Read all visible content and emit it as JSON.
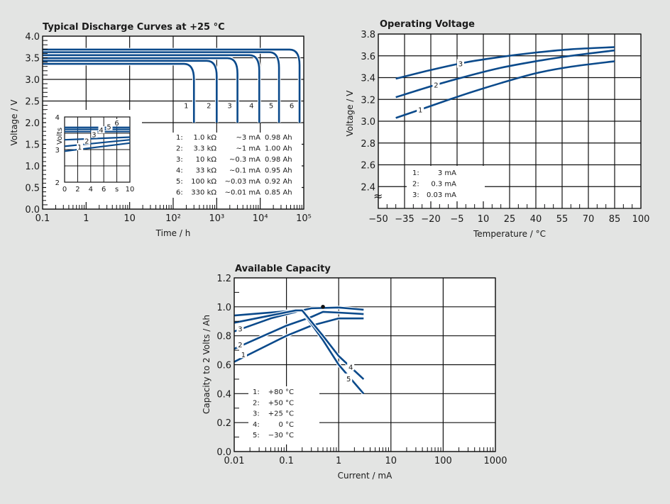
{
  "colors": {
    "background": "#e3e4e3",
    "plot_bg": "#ffffff",
    "curve": "#0b4a8b",
    "grid": "#111111"
  },
  "chart_data": [
    {
      "id": "discharge",
      "type": "line",
      "title": "Typical Discharge Curves at +25 °C",
      "xlabel": "Time / h",
      "ylabel": "Voltage / V",
      "xscale": "log",
      "xlim": [
        0.1,
        100000
      ],
      "ylim": [
        0.0,
        4.0
      ],
      "grid": true,
      "x_ticks": [
        0.1,
        1,
        10,
        100,
        1000,
        10000,
        100000
      ],
      "x_tick_labels": [
        "0.1",
        "1",
        "10",
        "10²",
        "10³",
        "10⁴",
        "10⁵"
      ],
      "y_ticks": [
        0.0,
        0.5,
        1.0,
        1.5,
        2.0,
        2.5,
        3.0,
        3.5,
        4.0
      ],
      "y_tick_labels": [
        "0.0",
        "0.5",
        "1.0",
        "1.5",
        "2.0",
        "2.5",
        "3.0",
        "3.5",
        "4.0"
      ],
      "series": [
        {
          "name": "1",
          "plateau_v": 3.36,
          "end_h": 300,
          "cutoff_v": 2.0
        },
        {
          "name": "2",
          "plateau_v": 3.43,
          "end_h": 1000,
          "cutoff_v": 2.0
        },
        {
          "name": "3",
          "plateau_v": 3.49,
          "end_h": 3000,
          "cutoff_v": 2.0
        },
        {
          "name": "4",
          "plateau_v": 3.56,
          "end_h": 9500,
          "cutoff_v": 2.0
        },
        {
          "name": "5",
          "plateau_v": 3.63,
          "end_h": 27000,
          "cutoff_v": 2.0
        },
        {
          "name": "6",
          "plateau_v": 3.69,
          "end_h": 80000,
          "cutoff_v": 2.0
        }
      ],
      "legend": {
        "placement": "bottom-right",
        "rows": [
          {
            "num": "1:",
            "load": "1.0 kΩ",
            "current": "~3 mA",
            "capacity": "0.98 Ah"
          },
          {
            "num": "2:",
            "load": "3.3 kΩ",
            "current": "~1 mA",
            "capacity": "1.00 Ah"
          },
          {
            "num": "3:",
            "load": "10 kΩ",
            "current": "~0.3 mA",
            "capacity": "0.98 Ah"
          },
          {
            "num": "4:",
            "load": "33 kΩ",
            "current": "~0.1 mA",
            "capacity": "0.95 Ah"
          },
          {
            "num": "5:",
            "load": "100 kΩ",
            "current": "~0.03 mA",
            "capacity": "0.92 Ah"
          },
          {
            "num": "6:",
            "load": "330 kΩ",
            "current": "~0.01 mA",
            "capacity": "0.85 Ah"
          }
        ]
      },
      "inset": {
        "type": "line",
        "ylabel": "Volts",
        "xlim": [
          0,
          10
        ],
        "ylim": [
          2,
          4
        ],
        "x_tick_labels": [
          "0",
          "2",
          "4",
          "6",
          "s",
          "10"
        ],
        "y_tick_labels": [
          "2",
          "3",
          "4"
        ],
        "series": [
          {
            "name": "1",
            "start_v": 2.95,
            "end_v": 3.2
          },
          {
            "name": "2",
            "start_v": 3.1,
            "end_v": 3.3
          },
          {
            "name": "3",
            "start_v": 3.3,
            "end_v": 3.38
          },
          {
            "name": "4",
            "start_v": 3.55,
            "end_v": 3.55
          },
          {
            "name": "5",
            "start_v": 3.62,
            "end_v": 3.62
          },
          {
            "name": "6",
            "start_v": 3.68,
            "end_v": 3.68
          }
        ]
      }
    },
    {
      "id": "operating",
      "type": "line",
      "title": "Operating Voltage",
      "xlabel": "Temperature / °C",
      "ylabel": "Voltage / V",
      "xlim": [
        -50,
        100
      ],
      "ylim": [
        2.2,
        3.8
      ],
      "axis_break": "≈",
      "grid": true,
      "x_ticks": [
        -50,
        -35,
        -20,
        -5,
        10,
        25,
        40,
        55,
        70,
        85,
        100
      ],
      "x_tick_labels": [
        "−50",
        "−35",
        "−20",
        "−5",
        "10",
        "25",
        "40",
        "55",
        "70",
        "85",
        "100"
      ],
      "y_ticks": [
        2.4,
        2.6,
        2.8,
        3.0,
        3.2,
        3.4,
        3.6,
        3.8
      ],
      "y_tick_labels": [
        "2.4",
        "2.6",
        "2.8",
        "3.0",
        "3.2",
        "3.4",
        "3.6",
        "3.8"
      ],
      "series": [
        {
          "name": "1",
          "x": [
            -40,
            -20,
            0,
            20,
            40,
            60,
            85
          ],
          "y": [
            3.03,
            3.14,
            3.25,
            3.35,
            3.44,
            3.5,
            3.55
          ]
        },
        {
          "name": "2",
          "x": [
            -40,
            -20,
            0,
            20,
            40,
            60,
            85
          ],
          "y": [
            3.22,
            3.32,
            3.41,
            3.49,
            3.55,
            3.6,
            3.65
          ]
        },
        {
          "name": "3",
          "x": [
            -40,
            -20,
            0,
            20,
            40,
            60,
            85
          ],
          "y": [
            3.39,
            3.47,
            3.54,
            3.59,
            3.63,
            3.66,
            3.68
          ]
        }
      ],
      "legend": {
        "placement": "bottom-left",
        "rows": [
          {
            "num": "1:",
            "current": "3 mA"
          },
          {
            "num": "2:",
            "current": "0.3 mA"
          },
          {
            "num": "3:",
            "current": "0.03 mA"
          }
        ]
      }
    },
    {
      "id": "capacity",
      "type": "line",
      "title": "Available Capacity",
      "xlabel": "Current / mA",
      "ylabel": "Capacity to 2 Volts / Ah",
      "xscale": "log",
      "xlim": [
        0.01,
        1000
      ],
      "ylim": [
        0.0,
        1.2
      ],
      "grid": true,
      "x_ticks": [
        0.01,
        0.1,
        1,
        10,
        100,
        1000
      ],
      "x_tick_labels": [
        "0.01",
        "0.1",
        "1",
        "10",
        "100",
        "1000"
      ],
      "y_ticks": [
        0.0,
        0.2,
        0.4,
        0.6,
        0.8,
        1.0,
        1.2
      ],
      "y_tick_labels": [
        "0.0",
        "0.2",
        "0.4",
        "0.6",
        "0.8",
        "1.0",
        "1.2"
      ],
      "marker": {
        "x": 0.5,
        "y": 1.0
      },
      "series": [
        {
          "name": "1",
          "x": [
            0.01,
            0.1,
            0.3,
            1,
            3
          ],
          "y": [
            0.62,
            0.8,
            0.87,
            0.92,
            0.92
          ]
        },
        {
          "name": "2",
          "x": [
            0.01,
            0.1,
            0.3,
            0.5,
            1,
            3
          ],
          "y": [
            0.71,
            0.87,
            0.93,
            0.965,
            0.96,
            0.95
          ]
        },
        {
          "name": "3",
          "x": [
            0.01,
            0.05,
            0.15,
            0.3,
            1,
            3
          ],
          "y": [
            0.83,
            0.92,
            0.965,
            0.99,
            0.995,
            0.98
          ]
        },
        {
          "name": "4",
          "x": [
            0.01,
            0.15,
            0.2,
            0.5,
            1,
            3
          ],
          "y": [
            0.89,
            0.975,
            0.975,
            0.8,
            0.66,
            0.5
          ]
        },
        {
          "name": "5",
          "x": [
            0.01,
            0.15,
            0.2,
            0.5,
            1,
            3
          ],
          "y": [
            0.94,
            0.975,
            0.97,
            0.77,
            0.6,
            0.4
          ]
        }
      ],
      "curve_labels": [
        {
          "name": "1",
          "x": 0.015,
          "y": 0.67
        },
        {
          "name": "2",
          "x": 0.013,
          "y": 0.74
        },
        {
          "name": "3",
          "x": 0.013,
          "y": 0.85
        },
        {
          "name": "4",
          "x": 1.7,
          "y": 0.585
        },
        {
          "name": "5",
          "x": 1.55,
          "y": 0.505
        }
      ],
      "legend": {
        "placement": "bottom-left",
        "rows": [
          {
            "num": "1:",
            "temp": "+80 °C"
          },
          {
            "num": "2:",
            "temp": "+50 °C"
          },
          {
            "num": "3:",
            "temp": "+25 °C"
          },
          {
            "num": "4:",
            "temp": "0 °C"
          },
          {
            "num": "5:",
            "temp": "−30 °C"
          }
        ]
      }
    }
  ]
}
